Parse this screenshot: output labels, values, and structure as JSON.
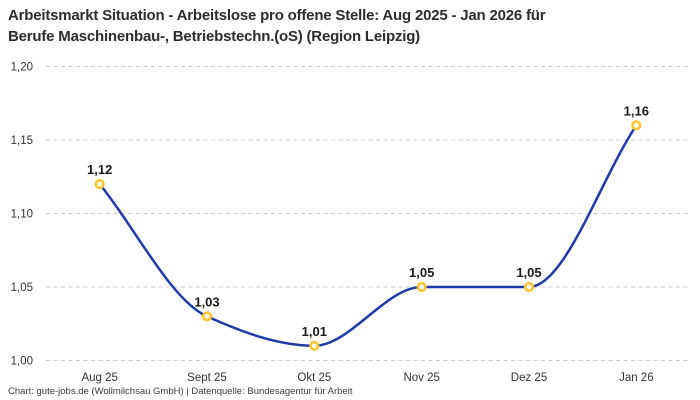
{
  "header": {
    "title_lines": [
      "Arbeitsmarkt Situation - Arbeitslose pro offene Stelle: Aug 2025 - Jan 2026 für",
      "Berufe Maschinenbau-, Betriebstechn.(oS) (Region Leipzig)"
    ]
  },
  "footer": {
    "attribution": "Chart: gute-jobs.de (Wollmilchsau GmbH) | Datenquelle: Bundesagentur für Arbeit"
  },
  "colors": {
    "background": "#ffffff",
    "line": "#1e3ca8",
    "marker_ring": "#ffc431",
    "marker_fill": "#ffffff",
    "grid": "#cccccc",
    "title_text": "#2d2d2d",
    "tick_text": "#333333",
    "point_label_text": "#1a1a1a",
    "footer_text": "#3c3c3c"
  },
  "chart_data": {
    "type": "line",
    "title": "Arbeitsmarkt Situation - Arbeitslose pro offene Stelle: Aug 2025 - Jan 2026 für Berufe Maschinenbau-, Betriebstechn.(oS) (Region Leipzig)",
    "categories": [
      "Aug 25",
      "Sept 25",
      "Okt 25",
      "Nov 25",
      "Dez 25",
      "Jan 26"
    ],
    "values": [
      1.12,
      1.03,
      1.01,
      1.05,
      1.05,
      1.16
    ],
    "point_labels": [
      "1,12",
      "1,03",
      "1,01",
      "1,05",
      "1,05",
      "1,16"
    ],
    "xlabel": "",
    "ylabel": "",
    "ylim": [
      1.0,
      1.2
    ],
    "yticks": [
      1.0,
      1.05,
      1.1,
      1.15,
      1.2
    ],
    "ytick_labels": [
      "1,00",
      "1,05",
      "1,10",
      "1,15",
      "1,20"
    ],
    "grid": "horizontal-dashed",
    "legend": "none",
    "curve": "monotone",
    "marker": "open-circle"
  }
}
